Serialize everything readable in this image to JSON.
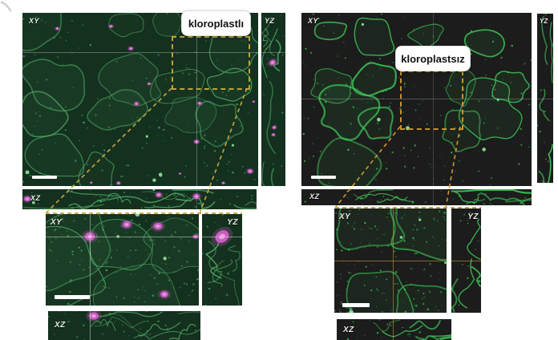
{
  "figure": {
    "type": "confocal-microscopy-orthogonal-views",
    "groups": {
      "left": {
        "condition_label": "kloroplastlı"
      },
      "right": {
        "condition_label": "kloroplastsız"
      }
    },
    "view_labels": {
      "xy": "XY",
      "yz": "YZ",
      "xz": "XZ"
    }
  },
  "colors": {
    "canvas_bg": "#ffffff",
    "left_panel_bg": "#14301e",
    "left_outline": "#4fa866",
    "magenta": "#d05ec7",
    "magenta_core": "#f2a7e8",
    "bright_spot": "#8fe39a",
    "right_panel_bg": "#1b1c1b",
    "right_outline": "#3fc558",
    "zoom_box_left": "#bfa23a",
    "zoom_box_right": "#c8922f",
    "scale_bar": "#ffffff",
    "condition_label_text": "#111111",
    "view_label_text": "#e9ede9"
  }
}
